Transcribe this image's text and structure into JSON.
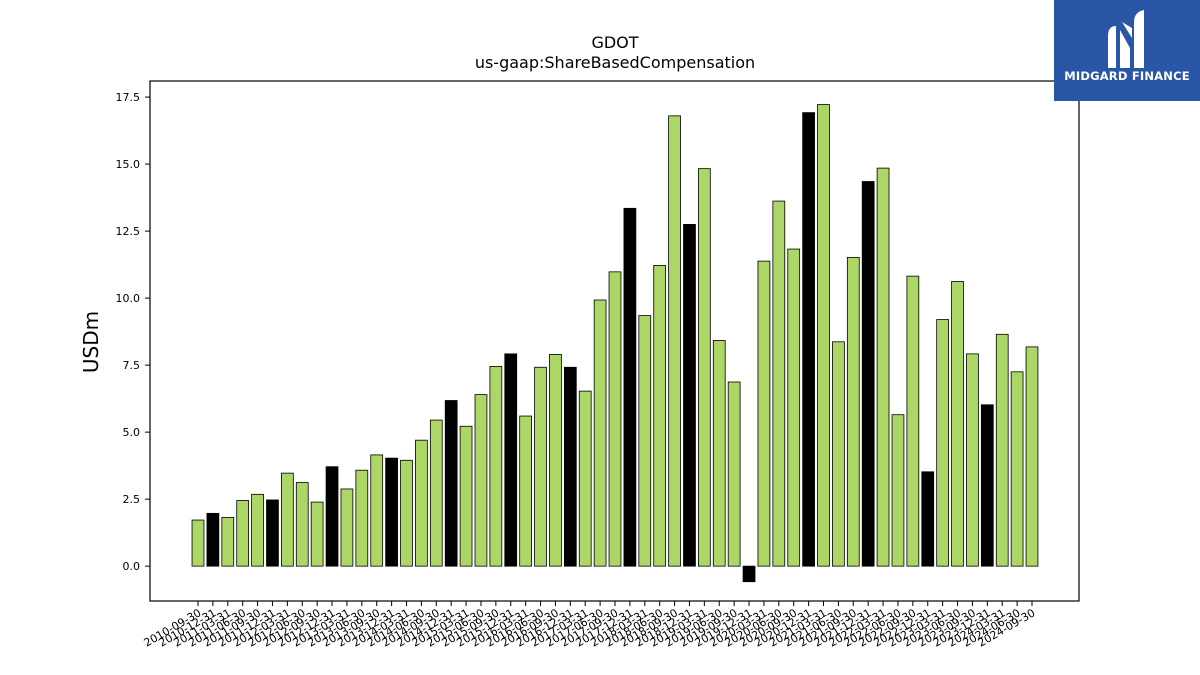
{
  "brand": {
    "name": "MIDGARD FINANCE",
    "logo_icon": "midgard-logo-icon",
    "background_color": "#2a56a8"
  },
  "chart_data": {
    "type": "bar",
    "title": "GDOT",
    "subtitle": "us-gaap:ShareBasedCompensation",
    "xlabel": "",
    "ylabel": "USDm",
    "ylim": [
      -1.3,
      18.1
    ],
    "yticks": [
      0.0,
      2.5,
      5.0,
      7.5,
      10.0,
      12.5,
      15.0,
      17.5
    ],
    "grid": false,
    "colors": {
      "quarter": "#acd665",
      "year_end": "#000000",
      "edge": "#000000"
    },
    "categories": [
      "2010-09-30",
      "2010-12-31",
      "2011-03-31",
      "2011-06-30",
      "2011-09-30",
      "2011-12-31",
      "2012-03-31",
      "2012-06-30",
      "2012-09-30",
      "2012-12-31",
      "2013-03-31",
      "2013-06-30",
      "2013-09-30",
      "2013-12-31",
      "2014-03-31",
      "2014-06-30",
      "2014-09-30",
      "2014-12-31",
      "2015-03-31",
      "2015-06-30",
      "2015-09-30",
      "2015-12-31",
      "2016-03-31",
      "2016-06-30",
      "2016-09-30",
      "2016-12-31",
      "2017-03-31",
      "2017-06-30",
      "2017-09-30",
      "2017-12-31",
      "2018-03-31",
      "2018-06-30",
      "2018-09-30",
      "2018-12-31",
      "2019-03-31",
      "2019-06-30",
      "2019-09-30",
      "2019-12-31",
      "2020-03-31",
      "2020-06-30",
      "2020-09-30",
      "2020-12-31",
      "2021-03-31",
      "2021-06-30",
      "2021-09-30",
      "2021-12-31",
      "2022-03-31",
      "2022-06-30",
      "2022-09-30",
      "2022-12-31",
      "2023-03-31",
      "2023-06-30",
      "2023-09-30",
      "2023-12-31",
      "2024-03-31",
      "2024-06-30",
      "2024-09-30"
    ],
    "values": [
      1.72,
      1.97,
      1.82,
      2.45,
      2.68,
      2.47,
      3.47,
      3.12,
      2.39,
      3.71,
      2.88,
      3.58,
      4.15,
      4.03,
      3.95,
      4.7,
      5.45,
      6.18,
      5.22,
      6.4,
      7.45,
      7.92,
      5.6,
      7.42,
      7.9,
      7.42,
      6.53,
      9.93,
      10.98,
      13.35,
      9.35,
      11.22,
      16.8,
      12.75,
      14.83,
      8.42,
      6.87,
      -0.58,
      11.38,
      13.62,
      11.83,
      16.92,
      17.22,
      8.37,
      11.52,
      14.35,
      14.85,
      5.65,
      10.82,
      3.52,
      9.2,
      10.62,
      7.92,
      6.02,
      8.65,
      7.25,
      8.18
    ],
    "year_end": [
      false,
      true,
      false,
      false,
      false,
      true,
      false,
      false,
      false,
      true,
      false,
      false,
      false,
      true,
      false,
      false,
      false,
      true,
      false,
      false,
      false,
      true,
      false,
      false,
      false,
      true,
      false,
      false,
      false,
      true,
      false,
      false,
      false,
      true,
      false,
      false,
      false,
      true,
      false,
      false,
      false,
      true,
      false,
      false,
      false,
      true,
      false,
      false,
      false,
      true,
      false,
      false,
      false,
      true,
      false,
      false,
      false
    ]
  }
}
